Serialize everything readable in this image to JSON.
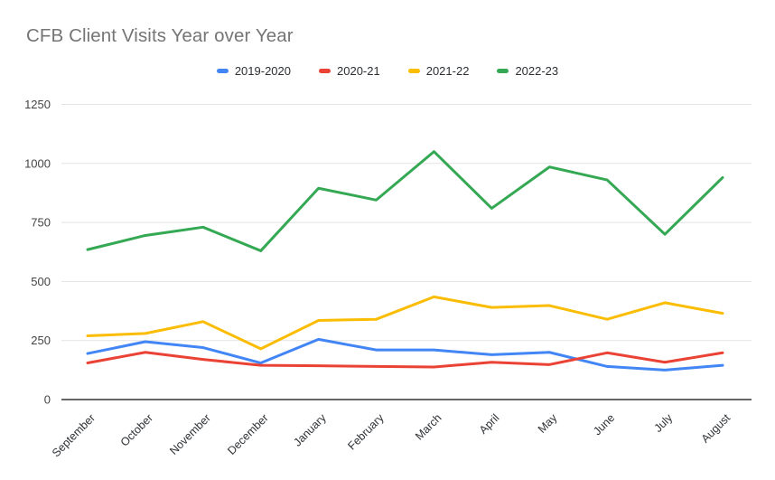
{
  "chart_data": {
    "type": "line",
    "title": "CFB Client Visits Year over Year",
    "categories": [
      "September",
      "October",
      "November",
      "December",
      "January",
      "February",
      "March",
      "April",
      "May",
      "June",
      "July",
      "August"
    ],
    "series": [
      {
        "name": "2019-2020",
        "color": "#4285f4",
        "values": [
          195,
          245,
          220,
          155,
          255,
          210,
          210,
          190,
          200,
          140,
          125,
          145
        ]
      },
      {
        "name": "2020-21",
        "color": "#ea4335",
        "values": [
          155,
          200,
          170,
          145,
          143,
          140,
          138,
          158,
          148,
          198,
          158,
          198
        ]
      },
      {
        "name": "2021-22",
        "color": "#fbbc04",
        "values": [
          270,
          280,
          330,
          215,
          335,
          340,
          435,
          390,
          398,
          340,
          410,
          365
        ]
      },
      {
        "name": "2022-23",
        "color": "#34a853",
        "values": [
          635,
          695,
          730,
          630,
          895,
          845,
          1050,
          810,
          985,
          930,
          700,
          940
        ]
      }
    ],
    "xlabel": "",
    "ylabel": "",
    "ylim": [
      0,
      1250
    ],
    "yticks": [
      0,
      250,
      500,
      750,
      1000,
      1250
    ],
    "grid": true,
    "legend_position": "top",
    "x_label_rotation_deg": 45
  },
  "colors": {
    "background": "#ffffff",
    "title_text": "#757575",
    "gridline": "#e3e3e3",
    "axis_baseline": "#333333",
    "y_tick_text": "#444444",
    "x_tick_text": "#2e3134",
    "legend_text": "#2b2f33"
  }
}
